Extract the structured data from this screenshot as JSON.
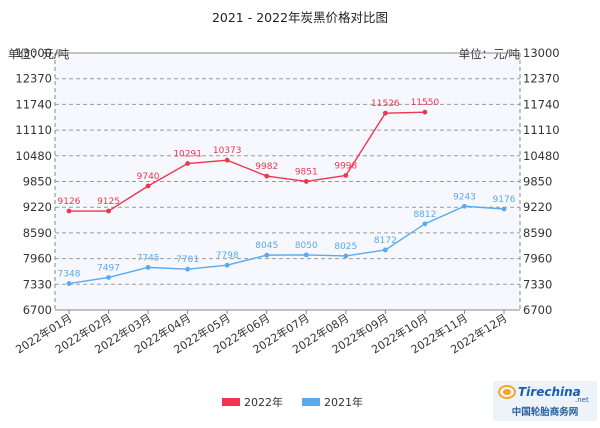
{
  "chart_data": {
    "type": "line",
    "title": "2021 - 2022年炭黑价格对比图",
    "unit_left": "单位：元/吨",
    "unit_right": "单位：元/吨",
    "categories": [
      "2022年01月",
      "2022年02月",
      "2022年03月",
      "2022年04月",
      "2022年05月",
      "2022年06月",
      "2022年07月",
      "2022年08月",
      "2022年09月",
      "2022年10月",
      "2022年11月",
      "2022年12月"
    ],
    "y_ticks": [
      "13000",
      "12370",
      "11740",
      "11110",
      "10480",
      "9850",
      "9220",
      "8590",
      "7960",
      "7330",
      "6700"
    ],
    "ylim": [
      6700,
      13000
    ],
    "grid": true,
    "legend_position": "bottom",
    "series": [
      {
        "name": "2022年",
        "color": "#f0364f",
        "values": [
          9126,
          9125,
          9740,
          10291,
          10373,
          9982,
          9851,
          9998,
          11526,
          11550,
          null,
          null
        ],
        "labels": [
          "9126",
          "9125",
          "9740",
          "10291",
          "10373",
          "9982",
          "9851",
          "9998",
          "11526",
          "11550",
          null,
          null
        ]
      },
      {
        "name": "2021年",
        "color": "#5aaaf0",
        "values": [
          7348,
          7497,
          7745,
          7701,
          7798,
          8045,
          8050,
          8025,
          8172,
          8812,
          9243,
          9176
        ],
        "labels": [
          "7348",
          "7497",
          "7745",
          "7701",
          "7798",
          "8045",
          "8050",
          "8025",
          "8172",
          "8812",
          "9243",
          "9176"
        ]
      }
    ]
  },
  "watermark": {
    "brand": "Tirechina",
    "brand_suffix": ".net",
    "cn_name": "中国轮胎商务网"
  }
}
